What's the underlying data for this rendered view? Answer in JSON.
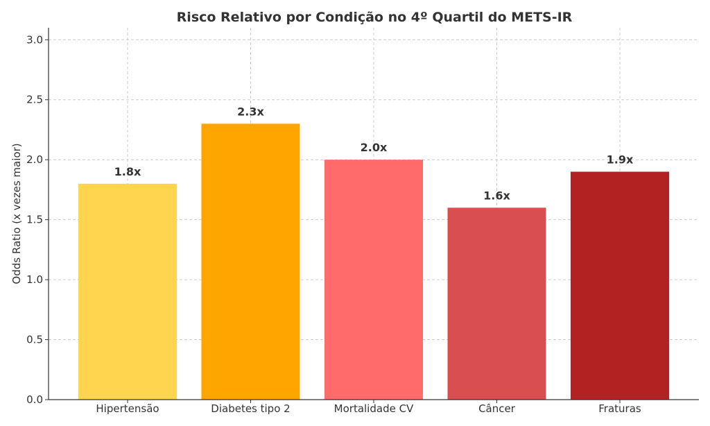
{
  "chart_data": {
    "type": "bar",
    "title": "Risco Relativo por Condição no 4º Quartil do METS-IR",
    "xlabel": "",
    "ylabel": "Odds Ratio (x vezes maior)",
    "ylim": [
      0,
      3.1
    ],
    "yticks": [
      {
        "value": 0.0,
        "label": "0.0"
      },
      {
        "value": 0.5,
        "label": "0.5"
      },
      {
        "value": 1.0,
        "label": "1.0"
      },
      {
        "value": 1.5,
        "label": "1.5"
      },
      {
        "value": 2.0,
        "label": "2.0"
      },
      {
        "value": 2.5,
        "label": "2.5"
      },
      {
        "value": 3.0,
        "label": "3.0"
      }
    ],
    "grid": true,
    "categories": [
      "Hipertensão",
      "Diabetes tipo 2",
      "Mortalidade CV",
      "Câncer",
      "Fraturas"
    ],
    "values": [
      1.8,
      2.3,
      2.0,
      1.6,
      1.9
    ],
    "data_labels": [
      "1.8x",
      "2.3x",
      "2.0x",
      "1.6x",
      "1.9x"
    ],
    "colors": [
      "#FFD54F",
      "#FFA500",
      "#FF6B6B",
      "#D94F4F",
      "#B22222"
    ]
  }
}
